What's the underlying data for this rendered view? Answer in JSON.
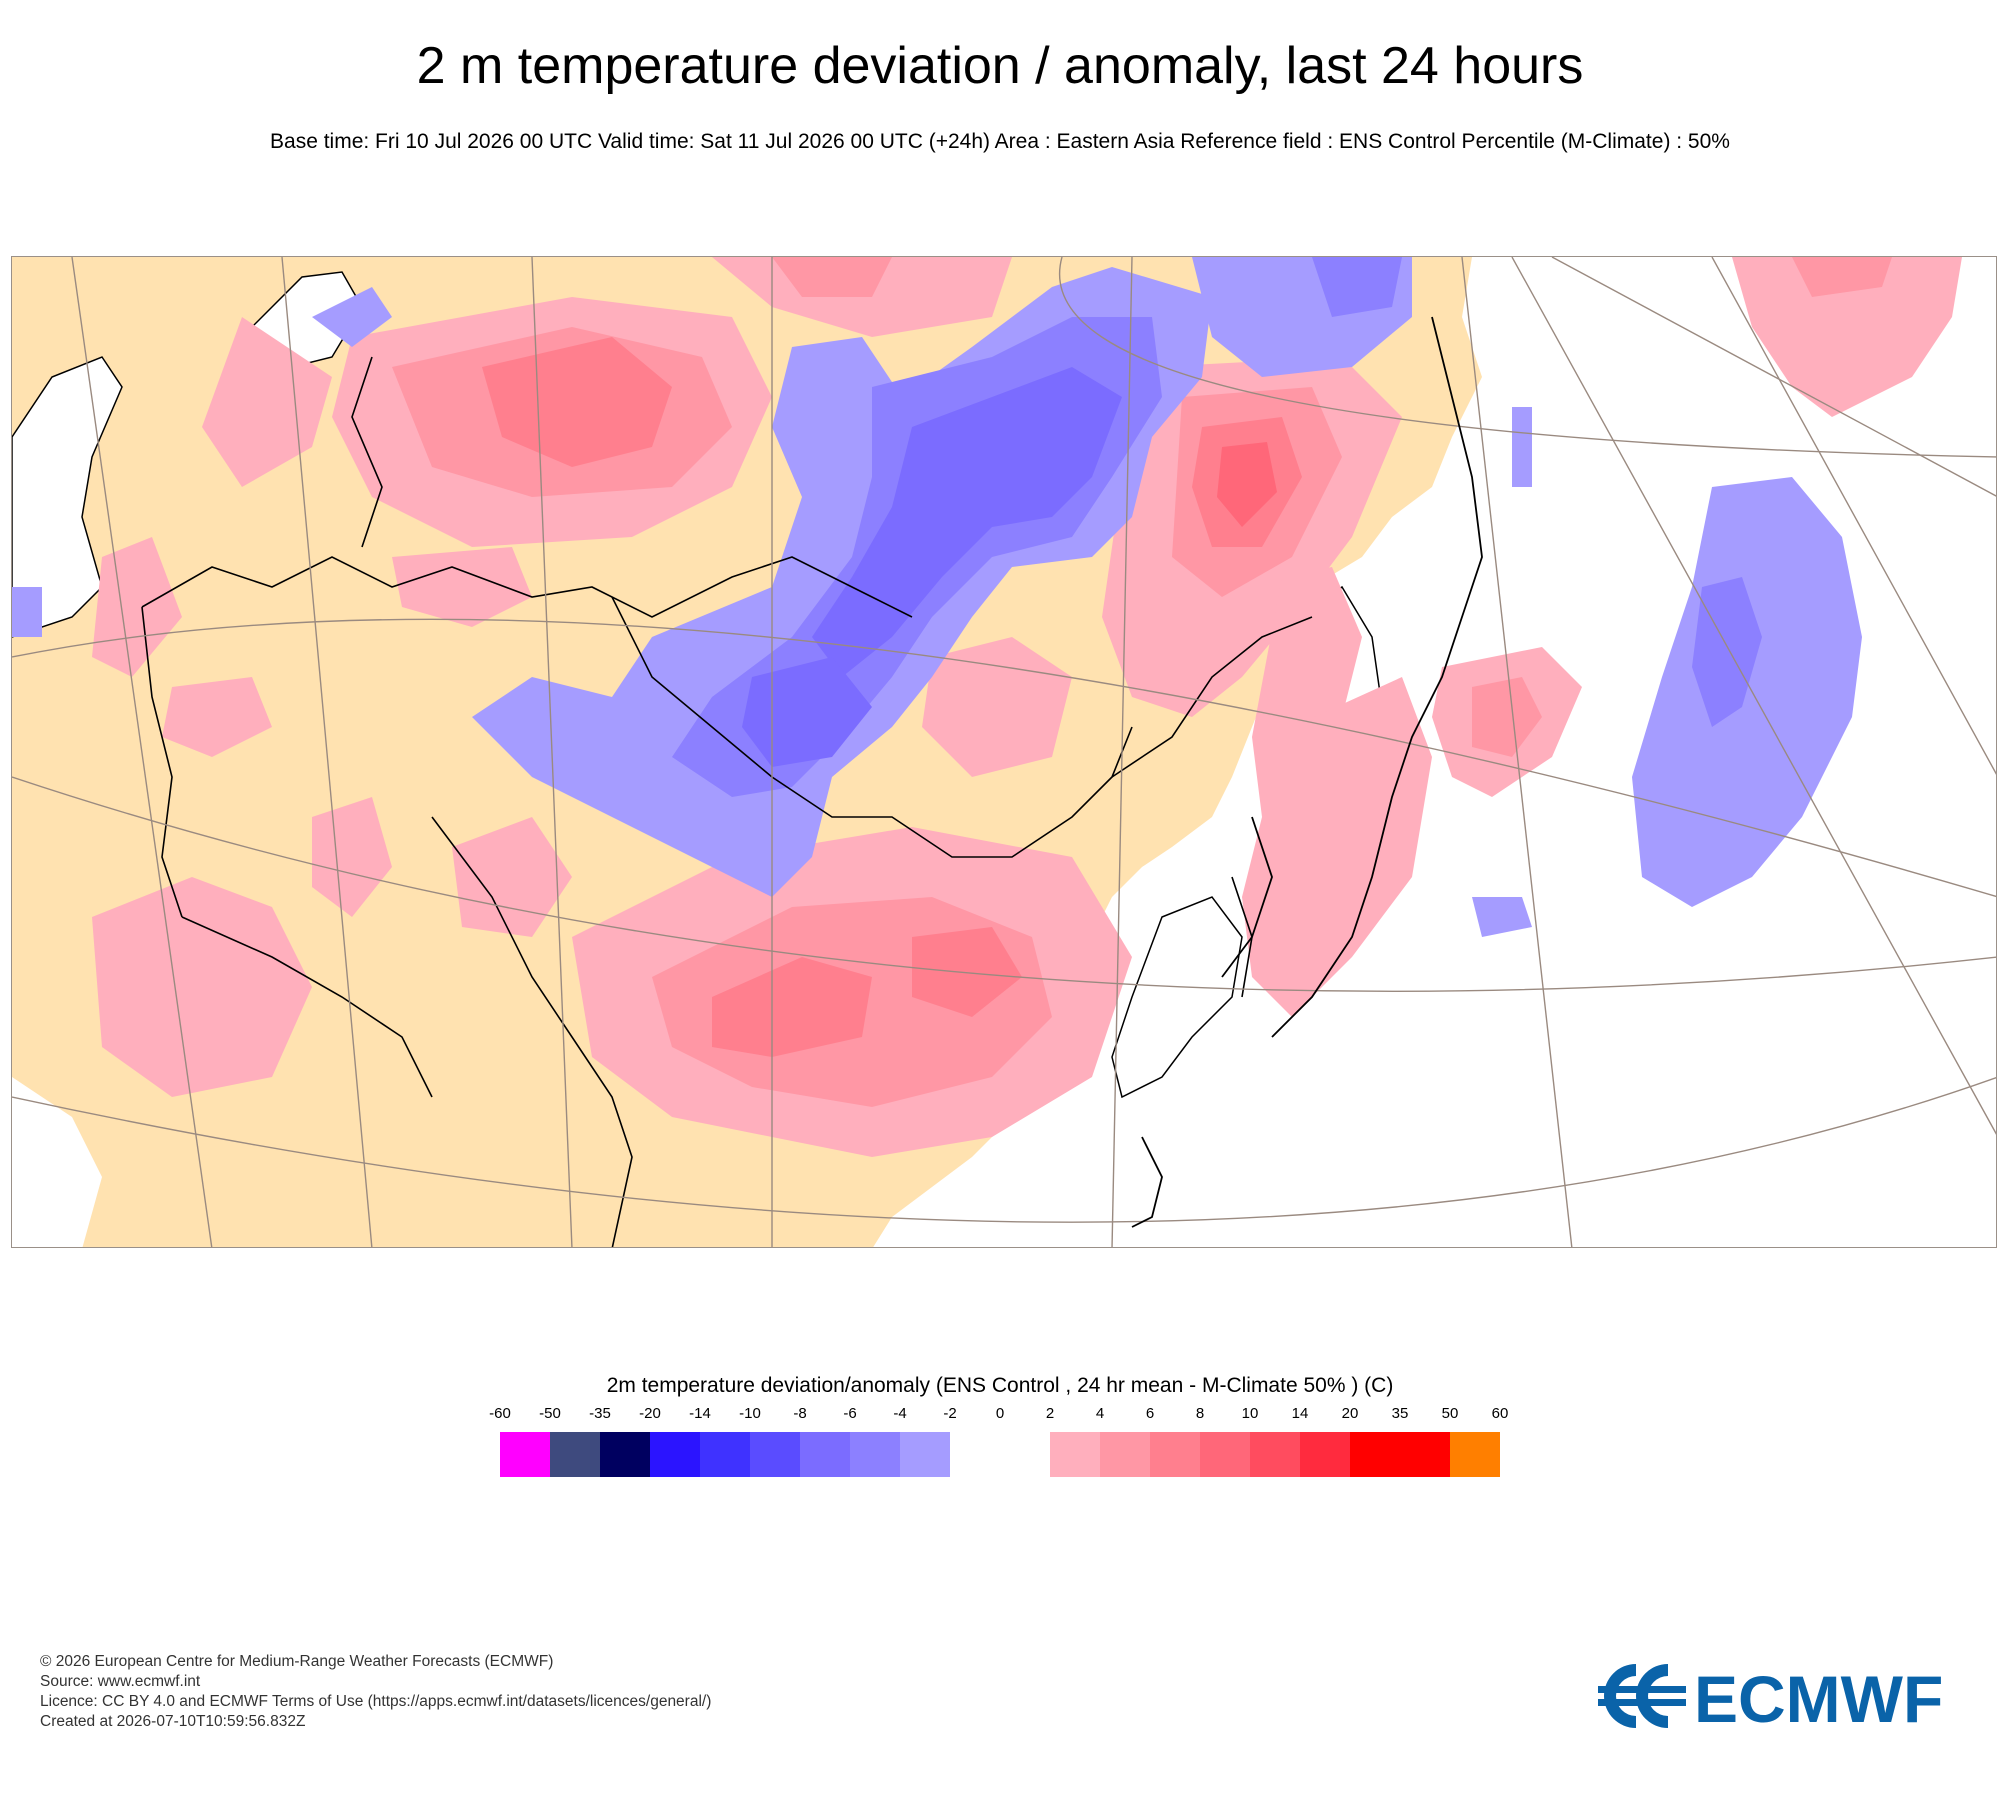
{
  "title": "2 m temperature deviation / anomaly, last 24 hours",
  "subtitle": "Base time: Fri 10 Jul 2026 00 UTC Valid time: Sat 11 Jul 2026 00 UTC (+24h) Area : Eastern Asia Reference field : ENS Control Percentile (M-Climate) : 50%",
  "legend": {
    "title": "2m temperature deviation/anomaly (ENS Control , 24 hr mean - M-Climate 50% ) (C)",
    "ticks": [
      "-60",
      "-50",
      "-35",
      "-20",
      "-14",
      "-10",
      "-8",
      "-6",
      "-4",
      "-2",
      "0",
      "2",
      "4",
      "6",
      "8",
      "10",
      "14",
      "20",
      "35",
      "50",
      "60"
    ],
    "colors": [
      "#ff00ff",
      "#3e4a7e",
      "#000060",
      "#2b14ff",
      "#3f32ff",
      "#5a4cff",
      "#7b6cff",
      "#8c80ff",
      "#a59cff",
      "#ffffff",
      "#ffffff",
      "#ffafbd",
      "#ff97a5",
      "#ff7f8e",
      "#ff6779",
      "#ff4c5f",
      "#ff2b3e",
      "#ff0000",
      "#ff0000",
      "#ff7f00"
    ]
  },
  "map_colors": {
    "land_neutral": "#ffe2b0",
    "sea": "#ffffff",
    "warm_1": "#ffafbd",
    "warm_2": "#ff97a5",
    "warm_3": "#ff7f8e",
    "warm_4": "#ff6779",
    "cold_1": "#a59cff",
    "cold_2": "#8c80ff",
    "cold_3": "#7b6cff",
    "borders": "#000000",
    "graticule": "#9a8a80"
  },
  "footer": {
    "copyright": "© 2026 European Centre for Medium-Range Weather Forecasts (ECMWF)",
    "source": "Source: www.ecmwf.int",
    "licence": "Licence: CC BY 4.0 and ECMWF Terms of Use (https://apps.ecmwf.int/datasets/licences/general/)",
    "created": "Created at 2026-07-10T10:59:56.832Z"
  },
  "logo": {
    "text": "ECMWF",
    "color": "#0a63a9",
    "icon": "ecmwf-logo-icon"
  }
}
